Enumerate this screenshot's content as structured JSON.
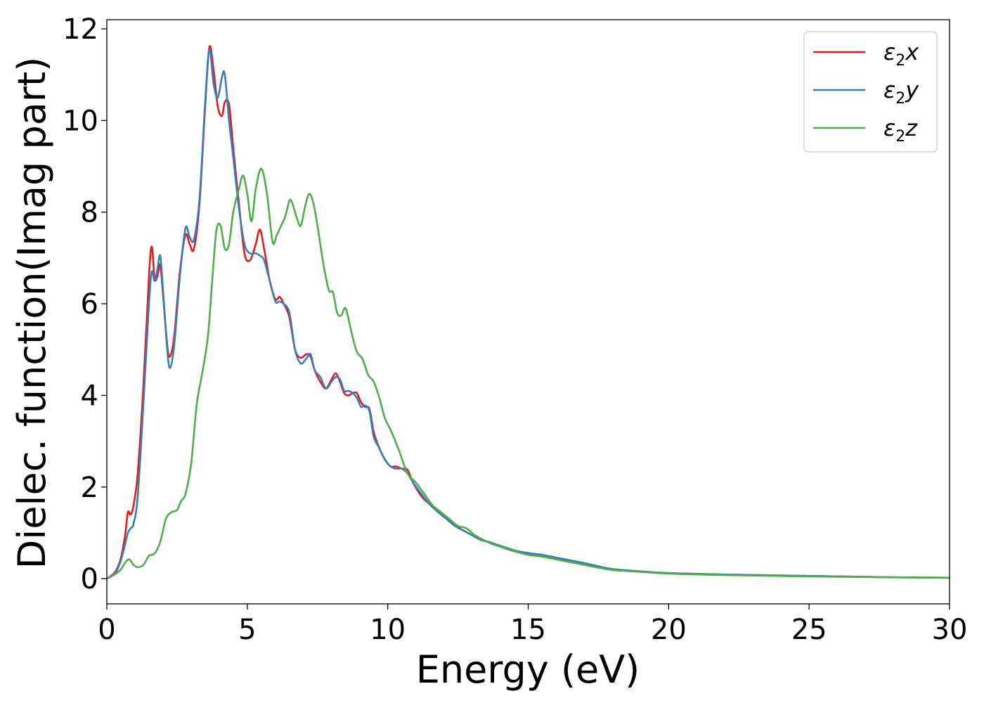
{
  "chart_data": {
    "type": "line",
    "xlabel": "Energy (eV)",
    "ylabel": "Dielec. function(Imag part)",
    "xlim": [
      0,
      30
    ],
    "ylim": [
      -0.55,
      12.2
    ],
    "xticks": [
      0,
      5,
      10,
      15,
      20,
      25,
      30
    ],
    "yticks": [
      0,
      2,
      4,
      6,
      8,
      10,
      12
    ],
    "grid": false,
    "legend_position": "top-right",
    "series": [
      {
        "name": "ε2x",
        "legend": {
          "base": "ε",
          "sub": "2",
          "var": "x"
        },
        "color": "#e41a1c",
        "x": [
          0,
          0.3,
          0.5,
          0.65,
          0.75,
          0.85,
          0.95,
          1.1,
          1.3,
          1.5,
          1.6,
          1.7,
          1.8,
          1.9,
          2.0,
          2.15,
          2.25,
          2.4,
          2.6,
          2.8,
          2.95,
          3.1,
          3.3,
          3.5,
          3.65,
          3.8,
          3.95,
          4.1,
          4.2,
          4.35,
          4.5,
          4.7,
          4.9,
          5.1,
          5.3,
          5.45,
          5.6,
          5.8,
          6.0,
          6.15,
          6.3,
          6.5,
          6.7,
          6.9,
          7.1,
          7.25,
          7.4,
          7.6,
          7.8,
          8.0,
          8.15,
          8.3,
          8.45,
          8.6,
          8.75,
          8.9,
          9.05,
          9.2,
          9.35,
          9.5,
          9.7,
          9.9,
          10.1,
          10.3,
          10.5,
          10.7,
          10.9,
          11.2,
          11.5,
          11.8,
          12.1,
          12.4,
          12.7,
          13.0,
          13.3,
          13.6,
          14.0,
          14.5,
          15.0,
          15.5,
          16.0,
          16.5,
          17.0,
          17.5,
          18.0,
          19.0,
          20.0,
          22.0,
          25.0,
          28.0,
          30.0
        ],
        "values": [
          0,
          0.15,
          0.45,
          0.95,
          1.45,
          1.4,
          1.6,
          2.3,
          4.2,
          6.6,
          7.25,
          6.55,
          6.6,
          6.85,
          6.2,
          5.1,
          4.85,
          5.3,
          6.7,
          7.5,
          7.3,
          7.2,
          8.2,
          10.3,
          11.6,
          11.1,
          10.3,
          10.1,
          10.4,
          10.35,
          9.4,
          8.2,
          7.1,
          6.95,
          7.3,
          7.62,
          7.2,
          6.5,
          6.1,
          6.15,
          6.0,
          5.7,
          5.0,
          4.82,
          4.9,
          4.85,
          4.55,
          4.3,
          4.15,
          4.35,
          4.48,
          4.3,
          4.05,
          4.0,
          4.05,
          4.05,
          3.85,
          3.75,
          3.7,
          3.2,
          2.85,
          2.6,
          2.45,
          2.45,
          2.4,
          2.38,
          2.1,
          1.8,
          1.62,
          1.45,
          1.3,
          1.15,
          1.05,
          0.95,
          0.85,
          0.8,
          0.7,
          0.6,
          0.55,
          0.52,
          0.45,
          0.38,
          0.32,
          0.26,
          0.2,
          0.15,
          0.12,
          0.09,
          0.06,
          0.03,
          0.02
        ]
      },
      {
        "name": "ε2y",
        "legend": {
          "base": "ε",
          "sub": "2",
          "var": "y"
        },
        "color": "#377eb8",
        "x": [
          0,
          0.3,
          0.5,
          0.65,
          0.75,
          0.85,
          0.95,
          1.1,
          1.3,
          1.5,
          1.6,
          1.7,
          1.8,
          1.9,
          2.0,
          2.15,
          2.25,
          2.4,
          2.6,
          2.8,
          2.95,
          3.1,
          3.3,
          3.5,
          3.65,
          3.8,
          3.95,
          4.1,
          4.2,
          4.35,
          4.5,
          4.7,
          4.9,
          5.1,
          5.3,
          5.45,
          5.6,
          5.8,
          6.0,
          6.15,
          6.3,
          6.5,
          6.7,
          6.9,
          7.1,
          7.25,
          7.4,
          7.6,
          7.8,
          8.0,
          8.15,
          8.3,
          8.45,
          8.6,
          8.75,
          8.9,
          9.05,
          9.2,
          9.35,
          9.5,
          9.7,
          9.9,
          10.1,
          10.3,
          10.5,
          10.7,
          10.9,
          11.2,
          11.5,
          11.8,
          12.1,
          12.4,
          12.7,
          13.0,
          13.3,
          13.6,
          14.0,
          14.5,
          15.0,
          15.5,
          16.0,
          16.5,
          17.0,
          17.5,
          18.0,
          19.0,
          20.0,
          22.0,
          25.0,
          28.0,
          30.0
        ],
        "values": [
          0,
          0.12,
          0.4,
          0.75,
          1.0,
          1.1,
          1.2,
          1.8,
          3.8,
          6.0,
          6.7,
          6.5,
          6.75,
          7.05,
          6.3,
          5.0,
          4.6,
          5.1,
          6.6,
          7.65,
          7.45,
          7.4,
          8.3,
          10.4,
          11.55,
          10.8,
          10.5,
          10.95,
          11.0,
          10.0,
          9.2,
          8.1,
          7.3,
          7.1,
          7.1,
          7.05,
          6.95,
          6.5,
          6.05,
          6.05,
          6.0,
          5.8,
          5.0,
          4.7,
          4.8,
          4.9,
          4.55,
          4.4,
          4.15,
          4.3,
          4.4,
          4.35,
          4.1,
          4.1,
          4.05,
          3.95,
          3.75,
          3.78,
          3.65,
          3.1,
          2.85,
          2.6,
          2.45,
          2.4,
          2.4,
          2.3,
          2.1,
          1.85,
          1.62,
          1.45,
          1.3,
          1.15,
          1.05,
          0.95,
          0.85,
          0.8,
          0.72,
          0.62,
          0.56,
          0.52,
          0.46,
          0.4,
          0.34,
          0.27,
          0.21,
          0.16,
          0.12,
          0.09,
          0.06,
          0.03,
          0.02
        ]
      },
      {
        "name": "ε2z",
        "legend": {
          "base": "ε",
          "sub": "2",
          "var": "z"
        },
        "color": "#4daf4a",
        "x": [
          0,
          0.3,
          0.5,
          0.65,
          0.8,
          0.95,
          1.1,
          1.3,
          1.5,
          1.7,
          1.9,
          2.1,
          2.3,
          2.5,
          2.65,
          2.8,
          3.0,
          3.2,
          3.4,
          3.6,
          3.75,
          3.9,
          4.05,
          4.2,
          4.35,
          4.5,
          4.7,
          4.85,
          5.0,
          5.15,
          5.3,
          5.5,
          5.7,
          5.9,
          6.05,
          6.2,
          6.35,
          6.5,
          6.6,
          6.75,
          6.9,
          7.05,
          7.2,
          7.35,
          7.5,
          7.7,
          7.9,
          8.05,
          8.2,
          8.35,
          8.5,
          8.7,
          8.9,
          9.1,
          9.3,
          9.5,
          9.7,
          9.9,
          10.1,
          10.4,
          10.7,
          11.0,
          11.3,
          11.6,
          11.9,
          12.2,
          12.5,
          12.8,
          13.1,
          13.4,
          13.7,
          14.0,
          14.5,
          15.0,
          15.5,
          16.0,
          16.5,
          17.0,
          17.5,
          18.0,
          19.0,
          20.0,
          22.0,
          25.0,
          28.0,
          30.0
        ],
        "values": [
          0,
          0.1,
          0.2,
          0.35,
          0.42,
          0.3,
          0.25,
          0.3,
          0.5,
          0.55,
          0.8,
          1.3,
          1.45,
          1.5,
          1.7,
          1.85,
          2.5,
          3.8,
          4.5,
          5.3,
          6.5,
          7.6,
          7.7,
          7.2,
          7.3,
          8.0,
          8.5,
          8.8,
          8.4,
          7.8,
          8.5,
          8.95,
          8.4,
          7.35,
          7.5,
          7.7,
          7.9,
          8.25,
          8.2,
          7.9,
          7.7,
          8.1,
          8.4,
          8.2,
          7.7,
          6.9,
          6.3,
          6.25,
          5.8,
          5.75,
          5.9,
          5.4,
          4.95,
          4.8,
          4.45,
          4.3,
          3.95,
          3.5,
          3.25,
          2.8,
          2.3,
          2.1,
          1.85,
          1.6,
          1.45,
          1.3,
          1.15,
          1.1,
          0.95,
          0.85,
          0.76,
          0.7,
          0.6,
          0.52,
          0.48,
          0.42,
          0.36,
          0.3,
          0.24,
          0.19,
          0.15,
          0.11,
          0.08,
          0.05,
          0.03,
          0.02
        ]
      }
    ]
  }
}
